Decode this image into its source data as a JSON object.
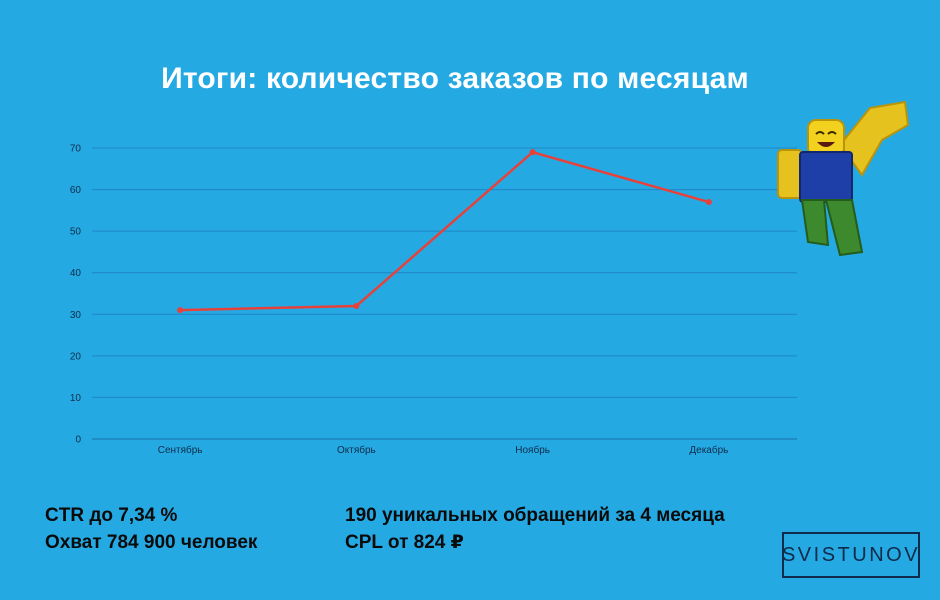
{
  "title": "Итоги: количество заказов по месяцам",
  "chart_data": {
    "type": "line",
    "categories": [
      "Сентябрь",
      "Октябрь",
      "Ноябрь",
      "Декабрь"
    ],
    "series": [
      {
        "values": [
          31,
          32,
          69,
          57
        ]
      }
    ],
    "yticks": [
      "0",
      "10",
      "20",
      "30",
      "40",
      "50",
      "60",
      "70"
    ],
    "ylim": [
      0,
      70
    ],
    "grid": true,
    "line_color": "#e8413a",
    "grid_color": "#1e86c4"
  },
  "stats_left": [
    "CTR до 7,34 %",
    "Охват 784 900 человек"
  ],
  "stats_right": [
    "190 уникальных обращений за 4 месяца",
    "CPL от 824 ₽"
  ],
  "logo": "SVISTUNOV",
  "mascot": {
    "icon": "roblox-noob-figure-icon"
  }
}
